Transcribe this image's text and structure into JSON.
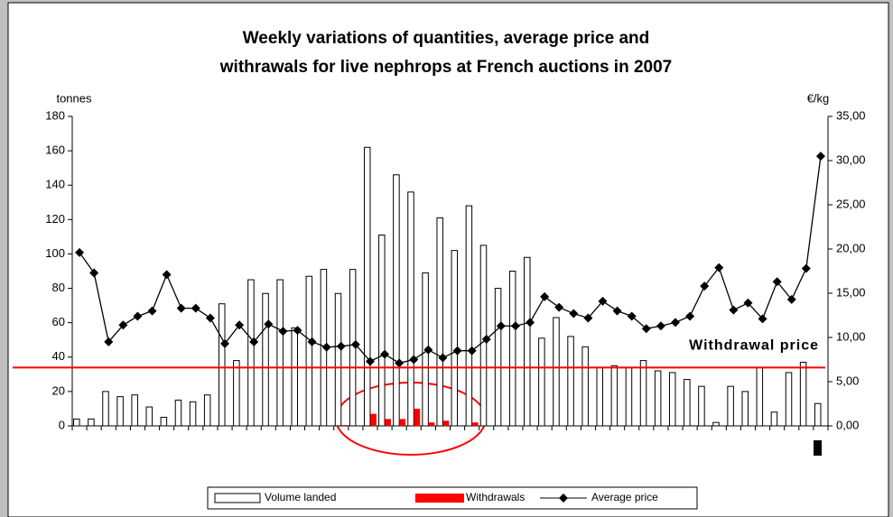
{
  "chart_data": {
    "type": "bar-line",
    "title": "Weekly variations of quantities, average price and",
    "title_line2": "withrawals for live nephrops at French auctions in 2007",
    "y_label": "tonnes",
    "y2_label": "€/kg",
    "ylim": [
      0,
      180
    ],
    "yticks": [
      0,
      20,
      40,
      60,
      80,
      100,
      120,
      140,
      160,
      180
    ],
    "y2lim": [
      0,
      35
    ],
    "y2ticks": [
      {
        "value": 0,
        "label": "0,00"
      },
      {
        "value": 5,
        "label": "5,00"
      },
      {
        "value": 10,
        "label": "10,00"
      },
      {
        "value": 15,
        "label": "15,00"
      },
      {
        "value": 20,
        "label": "20,00"
      },
      {
        "value": 25,
        "label": "25,00"
      },
      {
        "value": 30,
        "label": "30,00"
      },
      {
        "value": 35,
        "label": "35,00"
      }
    ],
    "series": [
      {
        "name": "Volume landed",
        "color": "#ffffff",
        "values": [
          4,
          4,
          20,
          17,
          18,
          11,
          5,
          15,
          14,
          18,
          71,
          38,
          85,
          77,
          85,
          57,
          87,
          91,
          77,
          91,
          162,
          111,
          146,
          136,
          89,
          121,
          102,
          128,
          105,
          80,
          90,
          98,
          51,
          63,
          52,
          46,
          34,
          35,
          34,
          38,
          32,
          31,
          27,
          23,
          2,
          23,
          20,
          34,
          8,
          31,
          37,
          13
        ]
      },
      {
        "name": "Withdrawals",
        "color": "#ff0000",
        "values": [
          null,
          null,
          null,
          null,
          null,
          null,
          null,
          null,
          null,
          null,
          null,
          null,
          null,
          null,
          null,
          null,
          null,
          null,
          0.5,
          null,
          7,
          4,
          4,
          10,
          2,
          3,
          null,
          2,
          null,
          null,
          null,
          null,
          null,
          null,
          null,
          null,
          null,
          null,
          null,
          null,
          null,
          null,
          null,
          null,
          null,
          null,
          null,
          null,
          null,
          null,
          null,
          null
        ]
      },
      {
        "name": "Average price",
        "color": "#000000",
        "axis": "y2",
        "values": [
          19.6,
          17.3,
          9.5,
          11.4,
          12.4,
          13.0,
          17.1,
          13.3,
          13.3,
          12.2,
          9.3,
          11.4,
          9.5,
          11.5,
          10.7,
          10.8,
          9.5,
          8.9,
          9.0,
          9.2,
          7.3,
          8.1,
          7.1,
          7.5,
          8.6,
          7.7,
          8.5,
          8.5,
          9.8,
          11.3,
          11.3,
          11.7,
          14.6,
          13.4,
          12.7,
          12.2,
          14.1,
          13.0,
          12.4,
          11.0,
          11.3,
          11.7,
          12.4,
          15.8,
          17.9,
          13.1,
          13.9,
          12.1,
          16.3,
          14.3,
          17.8,
          30.5
        ]
      }
    ],
    "withdrawal_price": {
      "label": "Withdrawal price",
      "value": 6.6,
      "color": "#ff0000"
    }
  }
}
